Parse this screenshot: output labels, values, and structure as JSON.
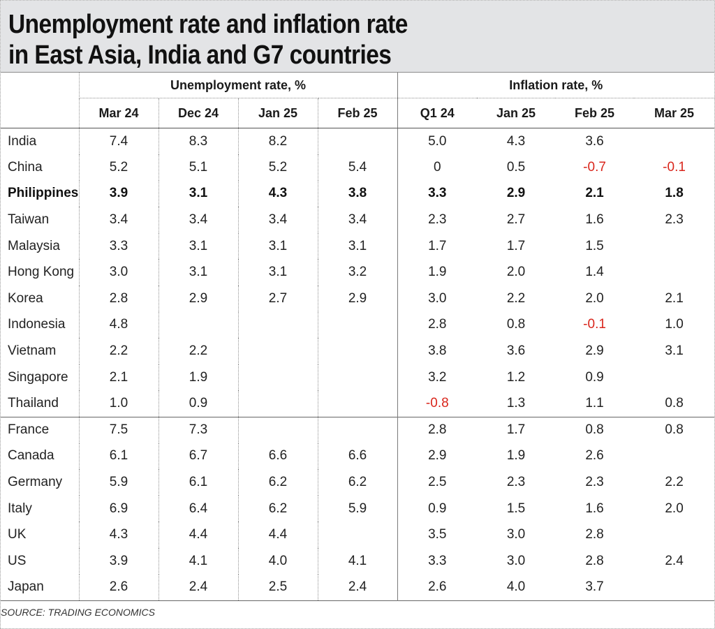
{
  "title_lines": [
    "Unemployment rate and inflation rate",
    "in East Asia, India and G7 countries"
  ],
  "chart_data": {
    "type": "table",
    "title": "Unemployment rate and inflation rate in East Asia, India and G7 countries",
    "groups": [
      {
        "label": "Unemployment rate, %",
        "columns": [
          "Mar 24",
          "Dec 24",
          "Jan 25",
          "Feb 25"
        ]
      },
      {
        "label": "Inflation rate, %",
        "columns": [
          "Q1 24",
          "Jan 25",
          "Feb 25",
          "Mar 25"
        ]
      }
    ],
    "highlight_row": "Philippines",
    "negative_color": "#d9261c",
    "rows": [
      {
        "country": "India",
        "values": [
          "7.4",
          "8.3",
          "8.2",
          "",
          "5.0",
          "4.3",
          "3.6",
          ""
        ]
      },
      {
        "country": "China",
        "values": [
          "5.2",
          "5.1",
          "5.2",
          "5.4",
          "0",
          "0.5",
          "-0.7",
          "-0.1"
        ]
      },
      {
        "country": "Philippines",
        "values": [
          "3.9",
          "3.1",
          "4.3",
          "3.8",
          "3.3",
          "2.9",
          "2.1",
          "1.8"
        ]
      },
      {
        "country": "Taiwan",
        "values": [
          "3.4",
          "3.4",
          "3.4",
          "3.4",
          "2.3",
          "2.7",
          "1.6",
          "2.3"
        ]
      },
      {
        "country": "Malaysia",
        "values": [
          "3.3",
          "3.1",
          "3.1",
          "3.1",
          "1.7",
          "1.7",
          "1.5",
          ""
        ]
      },
      {
        "country": "Hong Kong",
        "values": [
          "3.0",
          "3.1",
          "3.1",
          "3.2",
          "1.9",
          "2.0",
          "1.4",
          ""
        ]
      },
      {
        "country": "Korea",
        "values": [
          "2.8",
          "2.9",
          "2.7",
          "2.9",
          "3.0",
          "2.2",
          "2.0",
          "2.1"
        ]
      },
      {
        "country": "Indonesia",
        "values": [
          "4.8",
          "",
          "",
          "",
          "2.8",
          "0.8",
          "-0.1",
          "1.0"
        ]
      },
      {
        "country": "Vietnam",
        "values": [
          "2.2",
          "2.2",
          "",
          "",
          "3.8",
          "3.6",
          "2.9",
          "3.1"
        ]
      },
      {
        "country": "Singapore",
        "values": [
          "2.1",
          "1.9",
          "",
          "",
          "3.2",
          "1.2",
          "0.9",
          ""
        ]
      },
      {
        "country": "Thailand",
        "values": [
          "1.0",
          "0.9",
          "",
          "",
          "-0.8",
          "1.3",
          "1.1",
          "0.8"
        ]
      },
      {
        "country": "France",
        "values": [
          "7.5",
          "7.3",
          "",
          "",
          "2.8",
          "1.7",
          "0.8",
          "0.8"
        ]
      },
      {
        "country": "Canada",
        "values": [
          "6.1",
          "6.7",
          "6.6",
          "6.6",
          "2.9",
          "1.9",
          "2.6",
          ""
        ]
      },
      {
        "country": "Germany",
        "values": [
          "5.9",
          "6.1",
          "6.2",
          "6.2",
          "2.5",
          "2.3",
          "2.3",
          "2.2"
        ]
      },
      {
        "country": "Italy",
        "values": [
          "6.9",
          "6.4",
          "6.2",
          "5.9",
          "0.9",
          "1.5",
          "1.6",
          "2.0"
        ]
      },
      {
        "country": "UK",
        "values": [
          "4.3",
          "4.4",
          "4.4",
          "",
          "3.5",
          "3.0",
          "2.8",
          ""
        ]
      },
      {
        "country": "US",
        "values": [
          "3.9",
          "4.1",
          "4.0",
          "4.1",
          "3.3",
          "3.0",
          "2.8",
          "2.4"
        ]
      },
      {
        "country": "Japan",
        "values": [
          "2.6",
          "2.4",
          "2.5",
          "2.4",
          "2.6",
          "4.0",
          "3.7",
          ""
        ]
      }
    ],
    "section_break_before": "France",
    "source": "SOURCE: TRADING ECONOMICS"
  }
}
